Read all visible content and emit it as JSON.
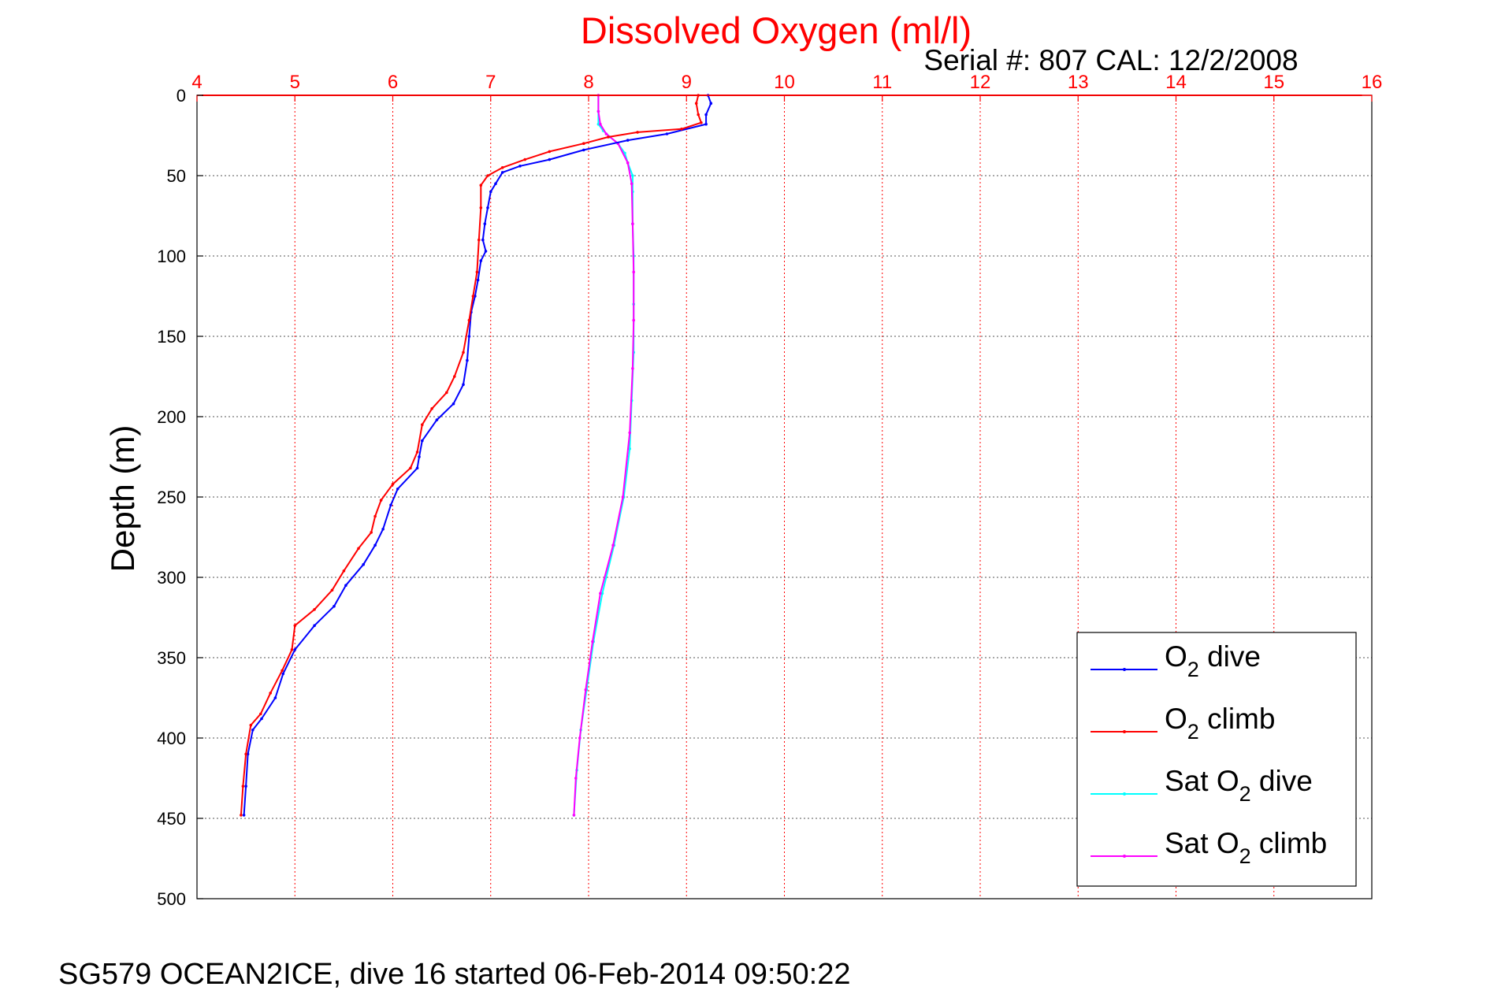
{
  "chart_data": {
    "type": "line",
    "title": "Dissolved Oxygen (ml/l)",
    "subtitle": "Serial #: 807  CAL: 12/2/2008",
    "ylabel": "Depth (m)",
    "xlim": [
      4,
      16
    ],
    "ylim": [
      0,
      500
    ],
    "y_reversed": true,
    "x_axis_position": "top",
    "grid": true,
    "legend_position": "bottom-right",
    "xticks": [
      "4",
      "5",
      "6",
      "7",
      "8",
      "9",
      "10",
      "11",
      "12",
      "13",
      "14",
      "15",
      "16"
    ],
    "yticks": [
      "0",
      "50",
      "100",
      "150",
      "200",
      "250",
      "300",
      "350",
      "400",
      "450",
      "500"
    ],
    "colors": {
      "title": "#ff0000",
      "x_axis": "#ff0000",
      "grid": "#555555",
      "o2_dive": "#0000ff",
      "o2_climb": "#ff0000",
      "sat_dive": "#00ffff",
      "sat_climb": "#ff00ff"
    },
    "series": [
      {
        "label_parts": [
          "O",
          "2",
          " dive"
        ],
        "color": "#0000ff",
        "points": [
          [
            9.22,
            0
          ],
          [
            9.25,
            5
          ],
          [
            9.2,
            12
          ],
          [
            9.2,
            18
          ],
          [
            8.8,
            24
          ],
          [
            8.4,
            28
          ],
          [
            7.95,
            34
          ],
          [
            7.6,
            40
          ],
          [
            7.3,
            44
          ],
          [
            7.12,
            48
          ],
          [
            7.05,
            55
          ],
          [
            7.0,
            60
          ],
          [
            6.97,
            70
          ],
          [
            6.94,
            80
          ],
          [
            6.92,
            90
          ],
          [
            6.95,
            97
          ],
          [
            6.9,
            103
          ],
          [
            6.87,
            115
          ],
          [
            6.84,
            125
          ],
          [
            6.8,
            135
          ],
          [
            6.78,
            150
          ],
          [
            6.76,
            165
          ],
          [
            6.72,
            180
          ],
          [
            6.62,
            192
          ],
          [
            6.45,
            202
          ],
          [
            6.3,
            215
          ],
          [
            6.27,
            225
          ],
          [
            6.25,
            232
          ],
          [
            6.05,
            245
          ],
          [
            5.98,
            255
          ],
          [
            5.9,
            270
          ],
          [
            5.82,
            280
          ],
          [
            5.7,
            292
          ],
          [
            5.52,
            305
          ],
          [
            5.4,
            318
          ],
          [
            5.2,
            330
          ],
          [
            5.0,
            345
          ],
          [
            4.88,
            360
          ],
          [
            4.8,
            375
          ],
          [
            4.66,
            388
          ],
          [
            4.57,
            395
          ],
          [
            4.52,
            410
          ],
          [
            4.5,
            430
          ],
          [
            4.48,
            448
          ]
        ]
      },
      {
        "label_parts": [
          "O",
          "2",
          " climb"
        ],
        "color": "#ff0000",
        "points": [
          [
            9.12,
            0
          ],
          [
            9.1,
            5
          ],
          [
            9.12,
            12
          ],
          [
            9.15,
            17
          ],
          [
            8.95,
            21
          ],
          [
            8.5,
            23
          ],
          [
            8.2,
            26
          ],
          [
            7.95,
            30
          ],
          [
            7.6,
            35
          ],
          [
            7.35,
            40
          ],
          [
            7.12,
            45
          ],
          [
            6.97,
            50
          ],
          [
            6.9,
            56
          ],
          [
            6.9,
            70
          ],
          [
            6.88,
            90
          ],
          [
            6.86,
            110
          ],
          [
            6.82,
            125
          ],
          [
            6.78,
            140
          ],
          [
            6.72,
            160
          ],
          [
            6.63,
            175
          ],
          [
            6.55,
            185
          ],
          [
            6.4,
            195
          ],
          [
            6.3,
            205
          ],
          [
            6.25,
            222
          ],
          [
            6.18,
            232
          ],
          [
            6.0,
            242
          ],
          [
            5.88,
            252
          ],
          [
            5.82,
            262
          ],
          [
            5.78,
            272
          ],
          [
            5.65,
            282
          ],
          [
            5.5,
            296
          ],
          [
            5.38,
            308
          ],
          [
            5.2,
            320
          ],
          [
            5.0,
            330
          ],
          [
            4.97,
            345
          ],
          [
            4.87,
            358
          ],
          [
            4.75,
            372
          ],
          [
            4.65,
            385
          ],
          [
            4.55,
            392
          ],
          [
            4.5,
            410
          ],
          [
            4.47,
            430
          ],
          [
            4.45,
            448
          ]
        ]
      },
      {
        "label_parts": [
          "Sat O",
          "2",
          " dive"
        ],
        "color": "#00ffff",
        "points": [
          [
            8.1,
            0
          ],
          [
            8.1,
            10
          ],
          [
            8.1,
            18
          ],
          [
            8.15,
            22
          ],
          [
            8.22,
            26
          ],
          [
            8.3,
            30
          ],
          [
            8.37,
            36
          ],
          [
            8.4,
            42
          ],
          [
            8.45,
            50
          ],
          [
            8.45,
            60
          ],
          [
            8.45,
            80
          ],
          [
            8.46,
            100
          ],
          [
            8.46,
            130
          ],
          [
            8.46,
            160
          ],
          [
            8.44,
            190
          ],
          [
            8.42,
            220
          ],
          [
            8.36,
            250
          ],
          [
            8.26,
            280
          ],
          [
            8.14,
            310
          ],
          [
            8.05,
            340
          ],
          [
            7.98,
            370
          ],
          [
            7.92,
            395
          ],
          [
            7.88,
            420
          ],
          [
            7.85,
            448
          ]
        ]
      },
      {
        "label_parts": [
          "Sat O",
          "2",
          " climb"
        ],
        "color": "#ff00ff",
        "points": [
          [
            8.1,
            0
          ],
          [
            8.1,
            10
          ],
          [
            8.12,
            18
          ],
          [
            8.18,
            24
          ],
          [
            8.3,
            30
          ],
          [
            8.4,
            42
          ],
          [
            8.44,
            55
          ],
          [
            8.45,
            80
          ],
          [
            8.46,
            110
          ],
          [
            8.46,
            140
          ],
          [
            8.45,
            170
          ],
          [
            8.42,
            210
          ],
          [
            8.35,
            250
          ],
          [
            8.25,
            280
          ],
          [
            8.12,
            310
          ],
          [
            8.04,
            340
          ],
          [
            7.97,
            370
          ],
          [
            7.91,
            400
          ],
          [
            7.87,
            425
          ],
          [
            7.85,
            448
          ]
        ]
      }
    ],
    "top_outlier_segment": {
      "color": "#ff0000",
      "points": [
        [
          4.05,
          -0.5
        ],
        [
          15.9,
          -0.5
        ]
      ]
    }
  },
  "footer": "SG579 OCEAN2ICE, dive 16 started 06-Feb-2014 09:50:22"
}
